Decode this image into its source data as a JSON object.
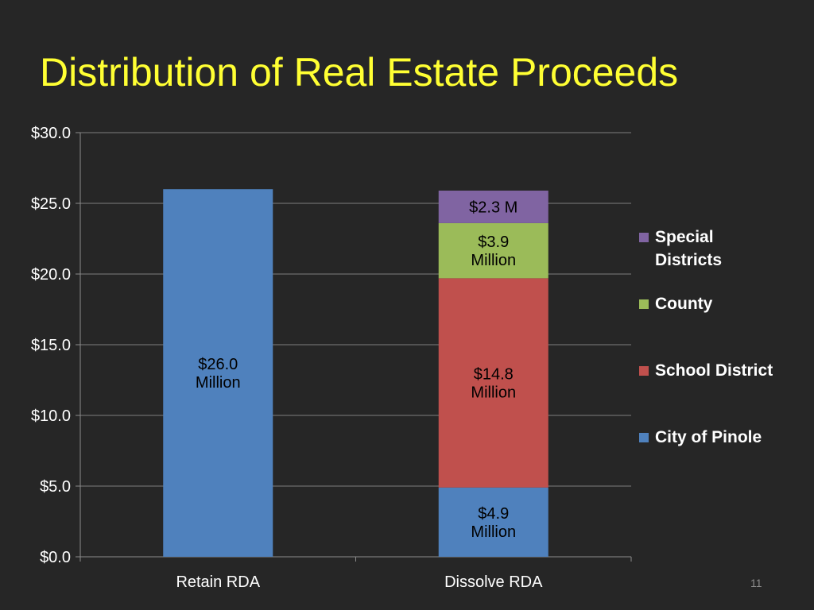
{
  "slide": {
    "title": "Distribution of Real Estate Proceeds",
    "page_number": "11"
  },
  "colors": {
    "background": "#262626",
    "title": "#ffff33",
    "City of Pinole": "#4f81bd",
    "School District": "#c0504d",
    "County": "#9bbb59",
    "Special Districts": "#8064a2"
  },
  "chart_data": {
    "type": "bar",
    "stacked": true,
    "categories": [
      "Retain RDA",
      "Dissolve RDA"
    ],
    "series": [
      {
        "name": "City of Pinole",
        "values": [
          26.0,
          4.9
        ],
        "labels": [
          "$26.0 Million",
          "$4.9 Million"
        ]
      },
      {
        "name": "School District",
        "values": [
          0,
          14.8
        ],
        "labels": [
          "",
          "$14.8 Million"
        ]
      },
      {
        "name": "County",
        "values": [
          0,
          3.9
        ],
        "labels": [
          "",
          "$3.9 Million"
        ]
      },
      {
        "name": "Special Districts",
        "values": [
          0,
          2.3
        ],
        "labels": [
          "",
          "$2.3 M"
        ]
      }
    ],
    "yticks": [
      "$0.0",
      "$5.0",
      "$10.0",
      "$15.0",
      "$20.0",
      "$25.0",
      "$30.0"
    ],
    "ylim": [
      0,
      30
    ],
    "ylabel": "",
    "xlabel": "",
    "grid": true,
    "legend": {
      "position": "right",
      "order": [
        "Special Districts",
        "County",
        "School District",
        "City of Pinole"
      ],
      "display_lines": [
        [
          "Special",
          "Districts"
        ],
        [
          "County"
        ],
        [
          "School District"
        ],
        [
          "City of Pinole"
        ]
      ]
    }
  }
}
